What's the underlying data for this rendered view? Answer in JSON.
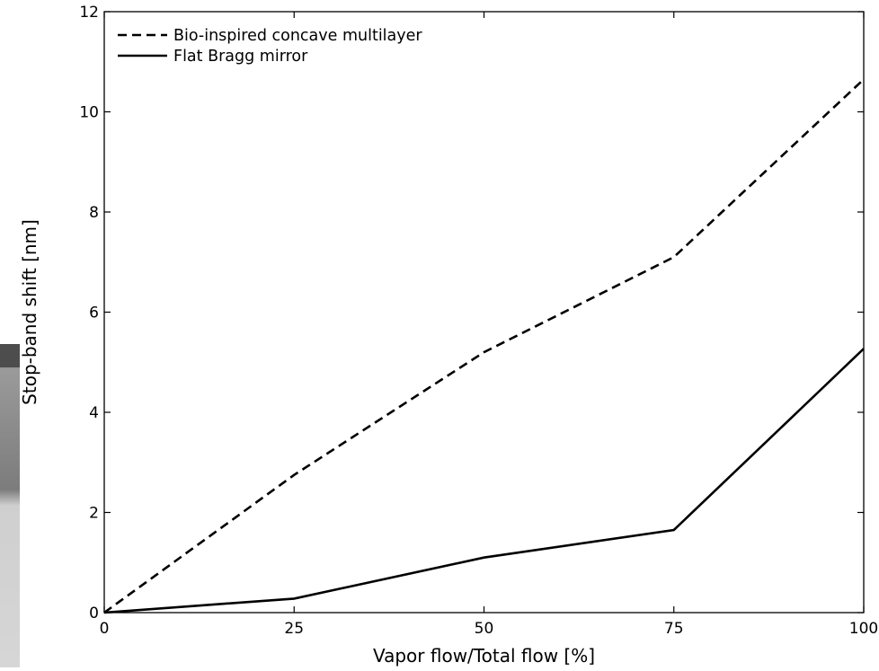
{
  "chart_data": {
    "type": "line",
    "title": "",
    "xlabel": "Vapor flow/Total flow [%]",
    "ylabel": "Stop-band shift [nm]",
    "xlim": [
      0,
      100
    ],
    "ylim": [
      0,
      12
    ],
    "x_ticks": [
      0,
      25,
      50,
      75,
      100
    ],
    "y_ticks": [
      0,
      2,
      4,
      6,
      8,
      10,
      12
    ],
    "x": [
      0,
      25,
      50,
      75,
      100
    ],
    "series": [
      {
        "name": "Bio-inspired concave multilayer",
        "values": [
          0,
          2.75,
          5.2,
          7.1,
          10.65
        ],
        "line_style": "dashed",
        "color": "#000000"
      },
      {
        "name": "Flat Bragg mirror",
        "values": [
          0,
          0.28,
          1.1,
          1.65,
          5.27
        ],
        "line_style": "solid",
        "color": "#000000"
      }
    ],
    "grid": false,
    "legend_position": "top-left"
  }
}
